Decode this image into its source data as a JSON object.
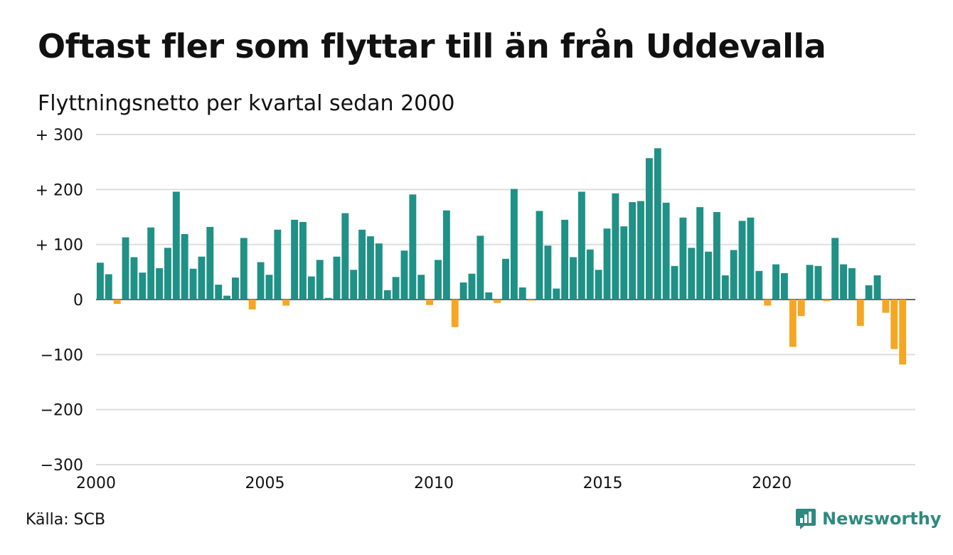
{
  "title": "Oftast fler som flyttar till än från Uddevalla",
  "subtitle": "Flyttningsnetto per kvartal sedan 2000",
  "source": "Källa: SCB",
  "brand": {
    "name": "Newsworthy",
    "icon": "newsworthy-logo-icon",
    "color": "#2e8a80"
  },
  "colors": {
    "positive": "#1f9186",
    "negative": "#f5a623",
    "grid": "#dddddd"
  },
  "chart_data": {
    "type": "bar",
    "x_start": 2000,
    "x_step": 0.25,
    "xlim": [
      2000,
      2024.25
    ],
    "ylim": [
      -300,
      300
    ],
    "grid": true,
    "legend": "none",
    "x_ticks": [
      {
        "value": 2000,
        "label": "2000"
      },
      {
        "value": 2005,
        "label": "2005"
      },
      {
        "value": 2010,
        "label": "2010"
      },
      {
        "value": 2015,
        "label": "2015"
      },
      {
        "value": 2020,
        "label": "2020"
      }
    ],
    "y_ticks": [
      {
        "value": 300,
        "label": "+ 300"
      },
      {
        "value": 200,
        "label": "+ 200"
      },
      {
        "value": 100,
        "label": "+ 100"
      },
      {
        "value": 0,
        "label": "0"
      },
      {
        "value": -100,
        "label": "−100"
      },
      {
        "value": -200,
        "label": "−200"
      },
      {
        "value": -300,
        "label": "−300"
      }
    ],
    "values": [
      67,
      46,
      -8,
      113,
      77,
      49,
      131,
      57,
      94,
      196,
      119,
      56,
      78,
      132,
      27,
      7,
      40,
      112,
      -18,
      68,
      45,
      127,
      -11,
      145,
      141,
      42,
      72,
      3,
      78,
      157,
      54,
      127,
      115,
      102,
      17,
      41,
      89,
      191,
      45,
      -10,
      72,
      162,
      -50,
      31,
      47,
      116,
      13,
      -6,
      74,
      201,
      22,
      -2,
      161,
      98,
      20,
      145,
      77,
      196,
      91,
      54,
      129,
      193,
      133,
      177,
      179,
      257,
      275,
      176,
      61,
      149,
      94,
      168,
      87,
      159,
      44,
      90,
      143,
      149,
      52,
      -11,
      64,
      48,
      -86,
      -30,
      63,
      61,
      -3,
      112,
      64,
      57,
      -48,
      26,
      44,
      -24,
      -90,
      -118
    ]
  }
}
